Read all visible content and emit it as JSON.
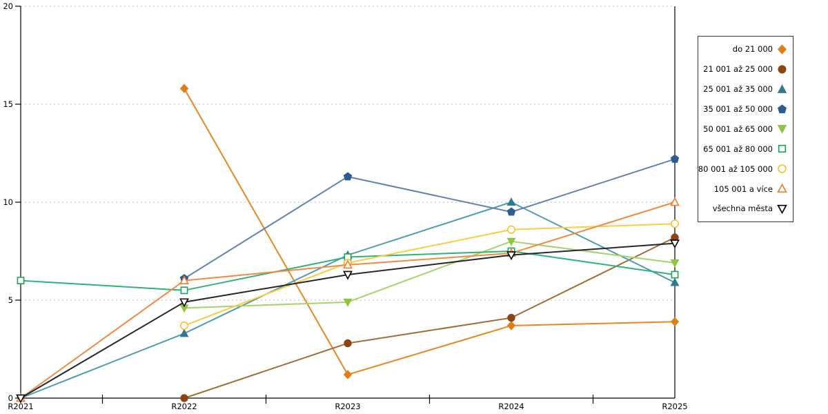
{
  "chart_data": {
    "type": "line",
    "categories": [
      "R2021",
      "R2022",
      "R2023",
      "R2024",
      "R2025"
    ],
    "series": [
      {
        "name": "do 21 000",
        "marker": "diamond",
        "filled": true,
        "marker_color": "#e07d14",
        "line_color": "#e8861f",
        "values": [
          null,
          15.8,
          1.2,
          3.7,
          3.9
        ]
      },
      {
        "name": "21 001 až 25 000",
        "marker": "circle",
        "filled": true,
        "marker_color": "#8a4513",
        "line_color": "#a56a32",
        "values": [
          null,
          0.0,
          2.8,
          4.1,
          8.2
        ]
      },
      {
        "name": "25 001 až 35 000",
        "marker": "triangle-up",
        "filled": true,
        "marker_color": "#31798f",
        "line_color": "#4f9cb0",
        "values": [
          0.0,
          3.3,
          7.3,
          10.0,
          5.9
        ]
      },
      {
        "name": "35 001 až 50 000",
        "marker": "pentagon",
        "filled": true,
        "marker_color": "#2d5c8f",
        "line_color": "#5d82b4",
        "values": [
          null,
          6.1,
          11.3,
          9.5,
          12.2
        ]
      },
      {
        "name": "50 001 až 65 000",
        "marker": "triangle-down",
        "filled": true,
        "marker_color": "#8dc63f",
        "line_color": "#a5d36b",
        "values": [
          null,
          4.6,
          4.9,
          8.0,
          6.9
        ]
      },
      {
        "name": "65 001 až 80 000",
        "marker": "square",
        "filled": false,
        "marker_color": "#17a659",
        "line_color": "#2db377",
        "values": [
          6.0,
          5.5,
          7.2,
          7.5,
          6.3
        ]
      },
      {
        "name": "80 001 až 105 000",
        "marker": "circle",
        "filled": false,
        "marker_color": "#fdc12a",
        "line_color": "#fecb40",
        "values": [
          null,
          3.7,
          6.9,
          8.6,
          8.9
        ]
      },
      {
        "name": "105 001 a více",
        "marker": "triangle-up",
        "filled": false,
        "marker_color": "#ed7d31",
        "line_color": "#f08a42",
        "values": [
          0.0,
          6.0,
          6.8,
          7.4,
          10.0
        ]
      },
      {
        "name": "všechna města",
        "marker": "triangle-down",
        "filled": false,
        "marker_color": "#000000",
        "line_color": "#262626",
        "values": [
          0.0,
          4.9,
          6.3,
          7.3,
          7.9
        ]
      }
    ],
    "title": "",
    "xlabel": "",
    "ylabel": "",
    "ylim": [
      0,
      20
    ],
    "yticks": [
      0,
      5,
      10,
      15,
      20
    ],
    "grid": "horizontal-dashed",
    "grid_color": "#b8b8b8",
    "axis_color": "#000000",
    "legend_position": "right"
  }
}
